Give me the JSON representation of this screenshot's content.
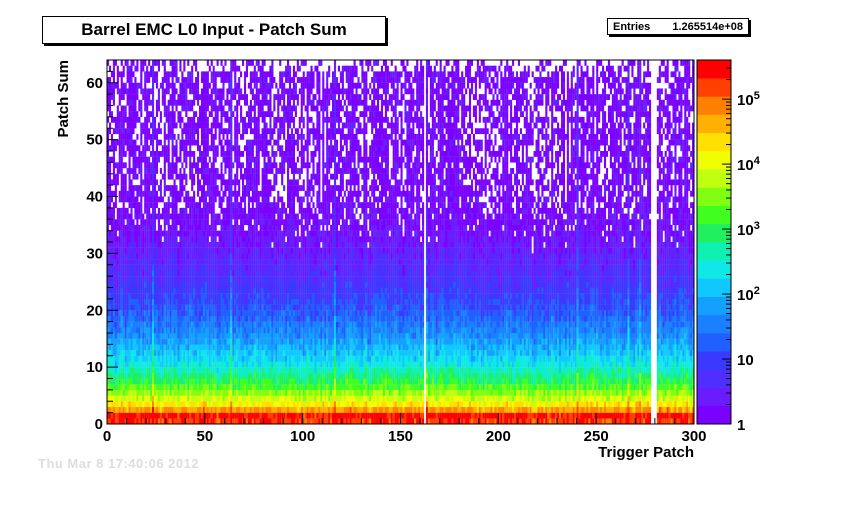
{
  "title": "Barrel EMC L0 Input - Patch Sum",
  "stats": {
    "label": "Entries",
    "value": "1.265514e+08"
  },
  "footer": {
    "date": "Thu Mar  8 17:40:06 2012"
  },
  "chart_data": {
    "type": "heatmap",
    "title": "Barrel EMC L0 Input - Patch Sum",
    "xlabel": "Trigger Patch",
    "ylabel": "Patch Sum",
    "xlim": [
      0,
      300
    ],
    "ylim": [
      0,
      64
    ],
    "x_bins": 300,
    "y_bins": 64,
    "x_ticks": [
      0,
      50,
      100,
      150,
      200,
      250,
      300
    ],
    "y_ticks": [
      0,
      10,
      20,
      30,
      40,
      50,
      60
    ],
    "z_scale": "log",
    "zlim": [
      1,
      400000
    ],
    "z_ticks": [
      {
        "value": 1,
        "label": "1"
      },
      {
        "value": 10,
        "label": "10"
      },
      {
        "value": 100,
        "label": "10",
        "exp": "2"
      },
      {
        "value": 1000,
        "label": "10",
        "exp": "3"
      },
      {
        "value": 10000,
        "label": "10",
        "exp": "4"
      },
      {
        "value": 100000,
        "label": "10",
        "exp": "5"
      }
    ],
    "total_entries": 126551400,
    "dead_patches": [
      162,
      278,
      279,
      280
    ],
    "hot_patches": [
      23,
      63,
      116,
      163,
      240,
      266,
      272,
      290
    ],
    "row_profile": [
      {
        "patch_sum": 0,
        "counts": 200000
      },
      {
        "patch_sum": 1,
        "counts": 300000
      },
      {
        "patch_sum": 2,
        "counts": 60000
      },
      {
        "patch_sum": 3,
        "counts": 18000
      },
      {
        "patch_sum": 4,
        "counts": 8000
      },
      {
        "patch_sum": 5,
        "counts": 4000
      },
      {
        "patch_sum": 6,
        "counts": 2000
      },
      {
        "patch_sum": 8,
        "counts": 700
      },
      {
        "patch_sum": 10,
        "counts": 250
      },
      {
        "patch_sum": 15,
        "counts": 50
      },
      {
        "patch_sum": 20,
        "counts": 15
      },
      {
        "patch_sum": 25,
        "counts": 6
      },
      {
        "patch_sum": 30,
        "counts": 3
      },
      {
        "patch_sum": 35,
        "counts": 1.5
      },
      {
        "patch_sum": 40,
        "counts": 1
      },
      {
        "patch_sum": 63,
        "counts": 1
      }
    ],
    "palette": [
      "#7a00ff",
      "#6a1cff",
      "#4f2eff",
      "#3a3aff",
      "#2060ff",
      "#1a80ff",
      "#14a0ff",
      "#10c8ff",
      "#10e8e8",
      "#10f0b0",
      "#20f060",
      "#40ff20",
      "#80ff10",
      "#c0ff10",
      "#f0ff00",
      "#ffe000",
      "#ffb000",
      "#ff8000",
      "#ff4000",
      "#ff0000"
    ]
  }
}
